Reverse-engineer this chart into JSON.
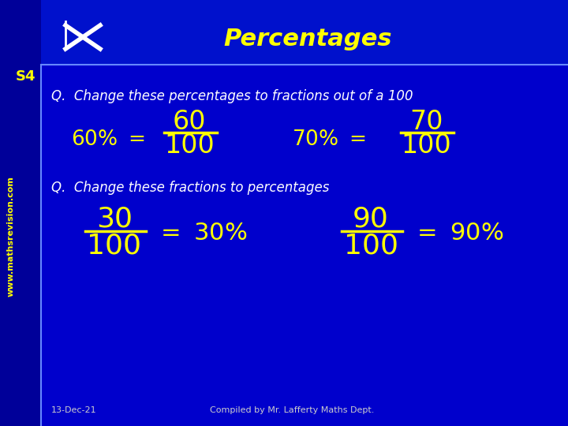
{
  "bg_color": "#0000cc",
  "sidebar_color": "#0000aa",
  "header_color": "#0000dd",
  "title": "Percentages",
  "title_color": "#ffff00",
  "title_fontsize": 22,
  "s4_label": "S4",
  "s4_color": "#ffff00",
  "website": "www.mathsrevision.com",
  "website_color": "#ffff00",
  "q1_text": "Q.  Change these percentages to fractions out of a 100",
  "q2_text": "Q.  Change these fractions to percentages",
  "text_color": "#ffffff",
  "yellow": "#ffff00",
  "footer_date": "13-Dec-21",
  "footer_credit": "Compiled by Mr. Lafferty Maths Dept.",
  "footer_color": "#cccccc",
  "fig_width": 7.2,
  "fig_height": 5.4,
  "dpi": 100
}
